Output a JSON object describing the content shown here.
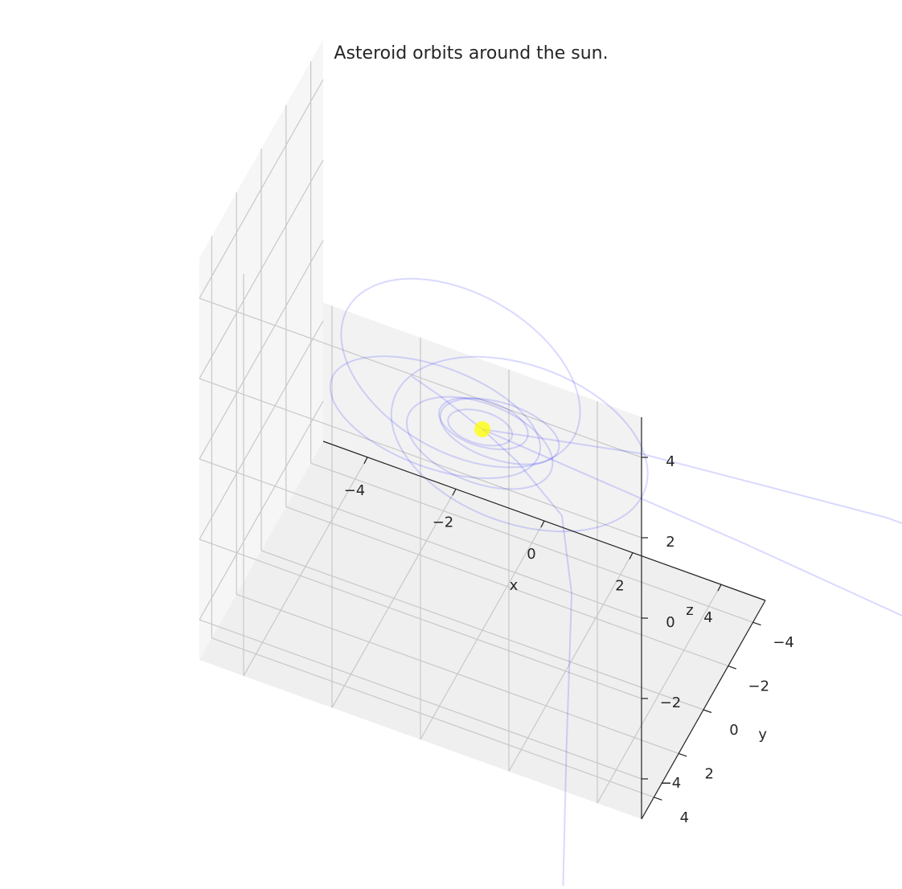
{
  "chart_data": {
    "type": "line",
    "projection": "3d",
    "title": "Asteroid orbits around the sun.",
    "xlabel": "x",
    "ylabel": "y",
    "zlabel": "z",
    "xlim": [
      -5,
      5
    ],
    "ylim": [
      -5,
      5
    ],
    "zlim": [
      -5,
      5
    ],
    "xticks": [
      -4,
      -2,
      0,
      2,
      4
    ],
    "yticks": [
      -4,
      -2,
      0,
      2,
      4
    ],
    "zticks": [
      -4,
      -2,
      0,
      2,
      4
    ],
    "xtick_labels": [
      "−4",
      "−2",
      "0",
      "2",
      "4"
    ],
    "ytick_labels": [
      "−4",
      "−2",
      "0",
      "2",
      "4"
    ],
    "ztick_labels": [
      "−4",
      "−2",
      "0",
      "2",
      "4"
    ],
    "grid": true,
    "sun": {
      "position": [
        0,
        0,
        0
      ],
      "color": "#ffff00"
    },
    "orbit_color": "#0000ff",
    "orbit_alpha": 0.15,
    "orbits": [
      {
        "a": 0.7,
        "e": 0.1,
        "inc_deg": 2,
        "node_deg": 0,
        "peri_deg": 30
      },
      {
        "a": 1.0,
        "e": 0.25,
        "inc_deg": 3,
        "node_deg": 20,
        "peri_deg": 60
      },
      {
        "a": 1.3,
        "e": 0.3,
        "inc_deg": 4,
        "node_deg": 40,
        "peri_deg": 110
      },
      {
        "a": 1.7,
        "e": 0.35,
        "inc_deg": 5,
        "node_deg": 60,
        "peri_deg": 200
      },
      {
        "a": 2.3,
        "e": 0.45,
        "inc_deg": 6,
        "node_deg": 80,
        "peri_deg": 260
      },
      {
        "a": 3.2,
        "e": 0.6,
        "inc_deg": 4,
        "node_deg": 120,
        "peri_deg": 300
      },
      {
        "a": 2.8,
        "e": 0.3,
        "inc_deg": 8,
        "node_deg": 160,
        "peri_deg": 20
      }
    ],
    "escaping_paths": [
      {
        "points": [
          [
            0,
            0,
            0
          ],
          [
            6,
            0.3,
            -0.3
          ],
          [
            12,
            0.8,
            -0.6
          ],
          [
            20,
            1.5,
            -1.0
          ]
        ]
      },
      {
        "points": [
          [
            0,
            0,
            0
          ],
          [
            3,
            -2,
            -0.5
          ],
          [
            8,
            -4,
            -1.2
          ],
          [
            14,
            -6,
            -2.5
          ]
        ]
      },
      {
        "points": [
          [
            0,
            0,
            0
          ],
          [
            1.2,
            1.5,
            0.5
          ],
          [
            2.5,
            2.5,
            0.2
          ],
          [
            3,
            3.5,
            -1
          ],
          [
            3.3,
            5,
            -4
          ],
          [
            3.5,
            6,
            -7
          ]
        ]
      },
      {
        "points": [
          [
            0,
            0,
            0
          ],
          [
            -0.8,
            0.8,
            1.0
          ],
          [
            -1.2,
            1.4,
            1.6
          ]
        ]
      }
    ]
  }
}
